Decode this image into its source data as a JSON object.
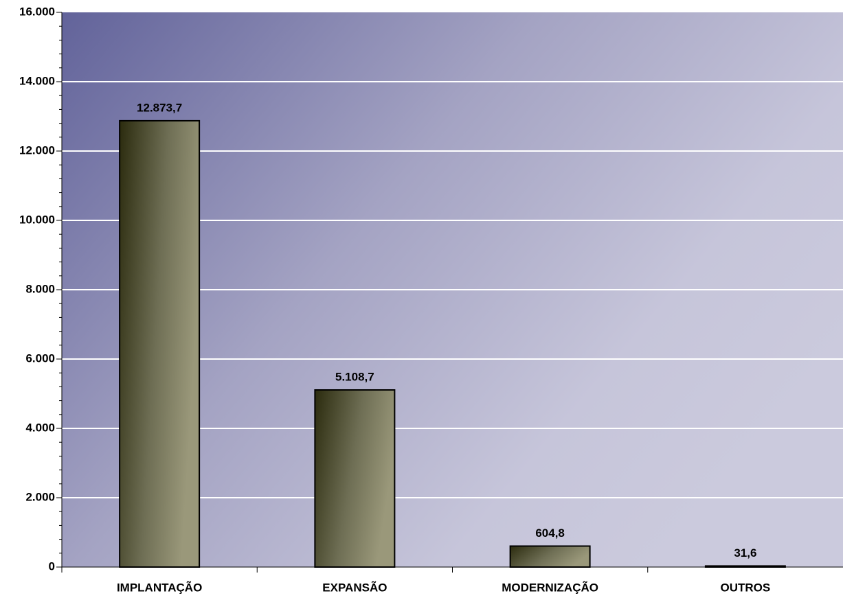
{
  "chart_data": {
    "type": "bar",
    "categories": [
      "IMPLANTAÇÃO",
      "EXPANSÃO",
      "MODERNIZAÇÃO",
      "OUTROS"
    ],
    "values": [
      12873.7,
      5108.7,
      604.8,
      31.6
    ],
    "value_labels": [
      "12.873,7",
      "5.108,7",
      "604,8",
      "31,6"
    ],
    "ylim": [
      0,
      16000
    ],
    "yticks": [
      0,
      {
        "value": 2000,
        "label": "2.000"
      },
      {
        "value": 4000,
        "label": "4.000"
      },
      {
        "value": 6000,
        "label": "6.000"
      },
      {
        "value": 8000,
        "label": "8.000"
      },
      {
        "value": 10000,
        "label": "10.000"
      },
      {
        "value": 12000,
        "label": "12.000"
      },
      {
        "value": 14000,
        "label": "14.000"
      },
      {
        "value": 16000,
        "label": "16.000"
      }
    ],
    "grid": true
  }
}
